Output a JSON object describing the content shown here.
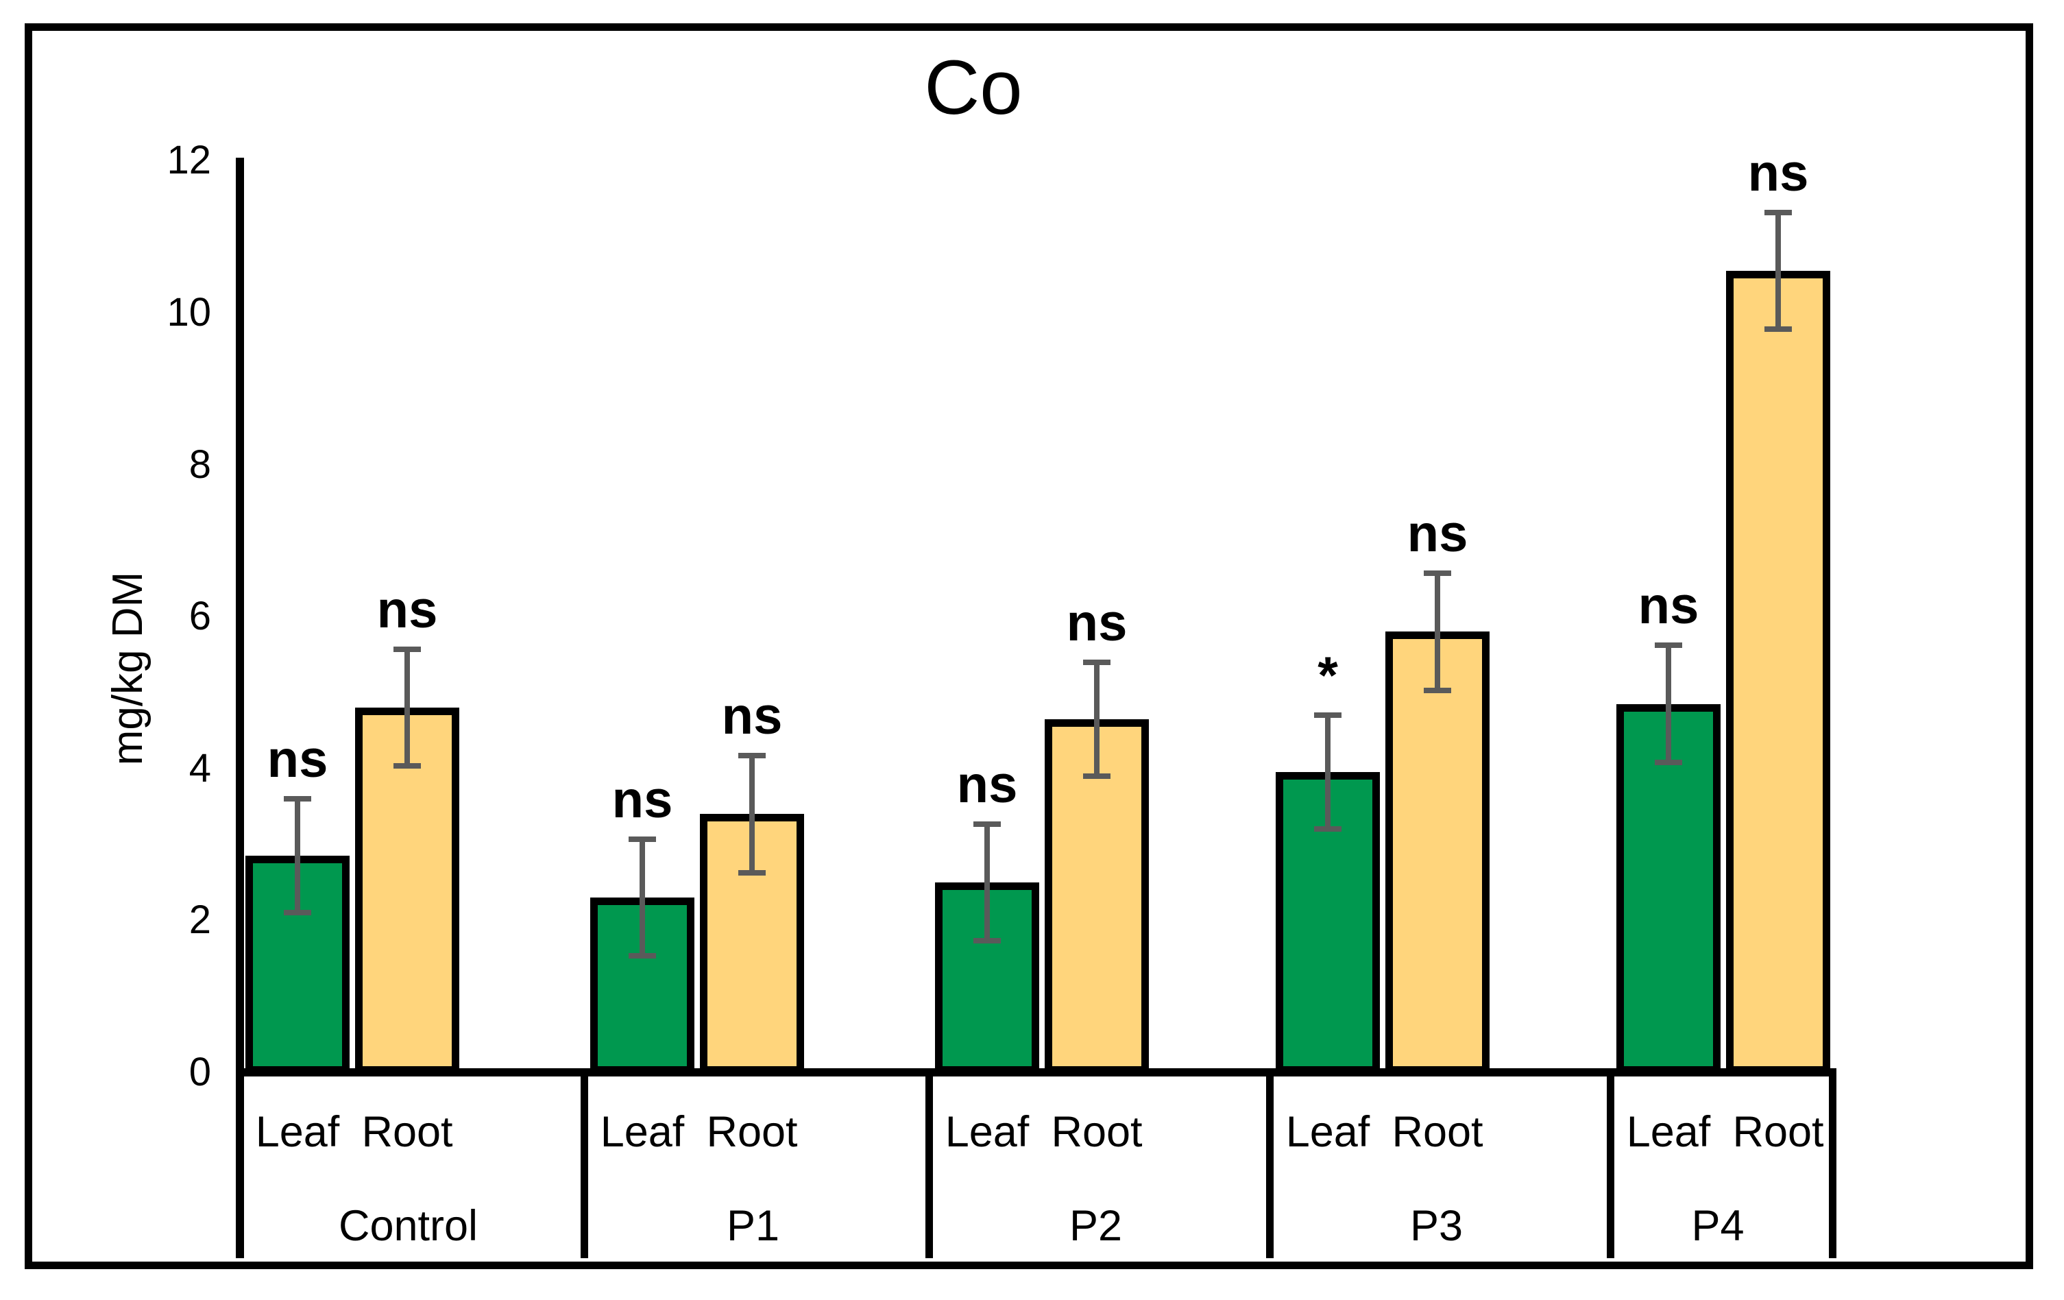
{
  "figure": {
    "title": "Co",
    "y_axis_label": "mg/kg DM"
  },
  "chart_data": {
    "type": "bar",
    "title": "Co",
    "ylabel": "mg/kg DM",
    "ylim": [
      0,
      12
    ],
    "yticks": [
      0,
      2,
      4,
      6,
      8,
      10,
      12
    ],
    "grid": false,
    "categories": [
      "Control",
      "P1",
      "P2",
      "P3",
      "P4"
    ],
    "sub_categories": [
      "Leaf",
      "Root"
    ],
    "series": [
      {
        "name": "Leaf",
        "color": "#00984F",
        "values": [
          2.85,
          2.3,
          2.5,
          3.95,
          4.85
        ],
        "errors": [
          0.75,
          0.77,
          0.77,
          0.75,
          0.77
        ],
        "annotations": [
          "ns",
          "ns",
          "ns",
          "*",
          "ns"
        ]
      },
      {
        "name": "Root",
        "color": "#FFD57C",
        "values": [
          4.8,
          3.4,
          4.65,
          5.8,
          10.55
        ],
        "errors": [
          0.77,
          0.77,
          0.75,
          0.77,
          0.77
        ],
        "annotations": [
          "ns",
          "ns",
          "ns",
          "ns",
          "ns"
        ]
      }
    ],
    "error_bar_color": "#5A5A5A",
    "bar_border_color": "#000000",
    "annotation_color": "#000000",
    "axis_color": "#000000"
  }
}
